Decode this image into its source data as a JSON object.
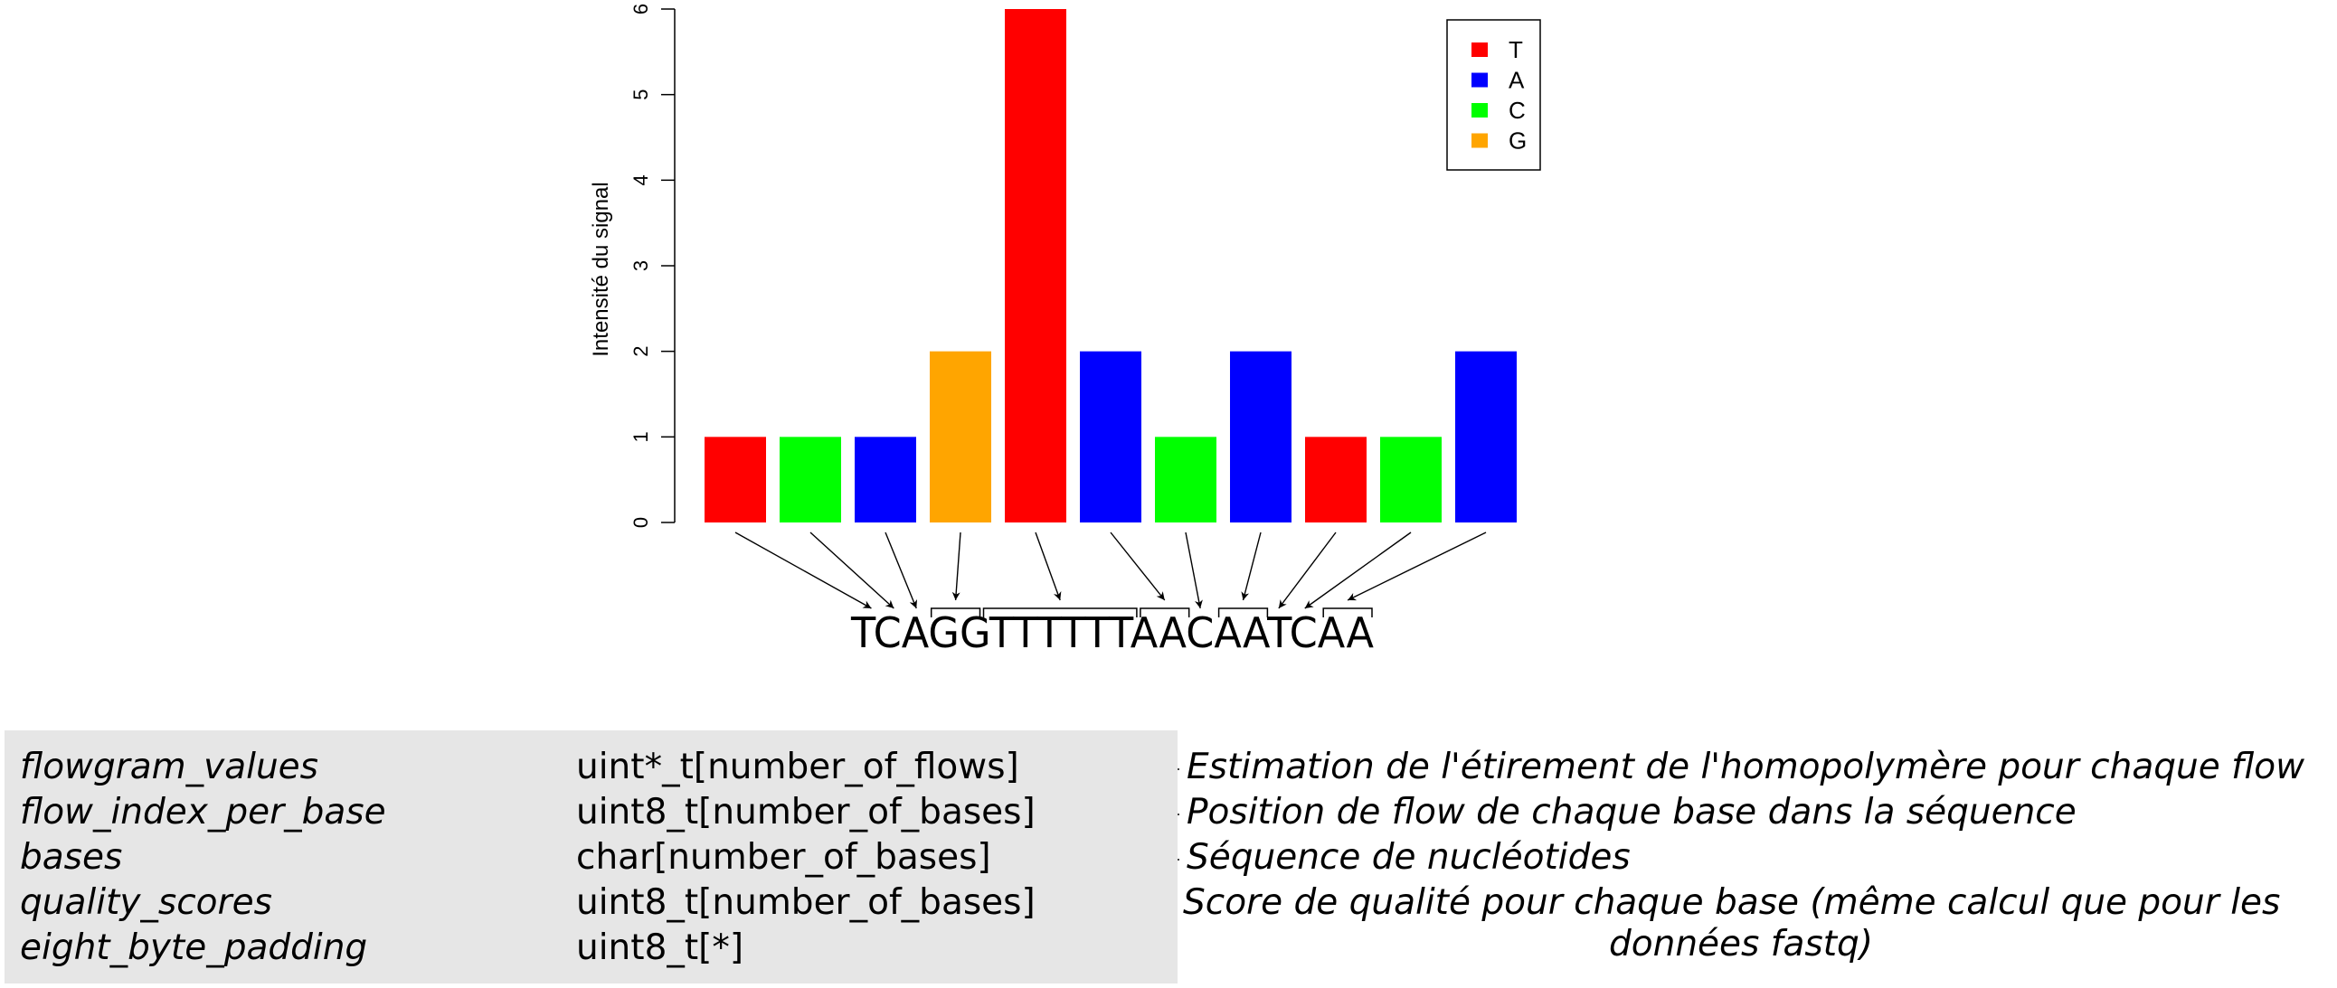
{
  "chart_data": {
    "type": "bar",
    "ylabel": "Intensité du signal",
    "ylim": [
      0,
      6
    ],
    "yticks": [
      "0",
      "1",
      "2",
      "3",
      "4",
      "5",
      "6"
    ],
    "bases": [
      "T",
      "C",
      "A",
      "G",
      "T",
      "A",
      "C",
      "A",
      "T",
      "C",
      "A"
    ],
    "values": [
      1,
      1,
      1,
      2,
      6,
      2,
      1,
      2,
      1,
      1,
      2
    ],
    "legend": [
      {
        "label": "T",
        "color": "#ff0000"
      },
      {
        "label": "A",
        "color": "#0000ff"
      },
      {
        "label": "C",
        "color": "#00ff00"
      },
      {
        "label": "G",
        "color": "#ffa500"
      }
    ],
    "legend_position": "top-right",
    "grid": false
  },
  "sequence": "TCAGGTTTTTTAACAATCAA",
  "fields": [
    {
      "name": "flowgram_values",
      "type": "uint*_t[number_of_flows]",
      "desc": "Estimation de l'étirement de l'homopolymère pour chaque flow"
    },
    {
      "name": "flow_index_per_base",
      "type": "uint8_t[number_of_bases]",
      "desc": "Position de flow de chaque base dans la séquence"
    },
    {
      "name": "bases",
      "type": "char[number_of_bases]",
      "desc": "Séquence de nucléotides"
    },
    {
      "name": "quality_scores",
      "type": "uint8_t[number_of_bases]",
      "desc": "Score de qualité pour chaque base (même calcul que pour les"
    },
    {
      "name": "eight_byte_padding",
      "type": "uint8_t[*]",
      "desc": ""
    }
  ],
  "quality_desc_line2": "données fastq)"
}
